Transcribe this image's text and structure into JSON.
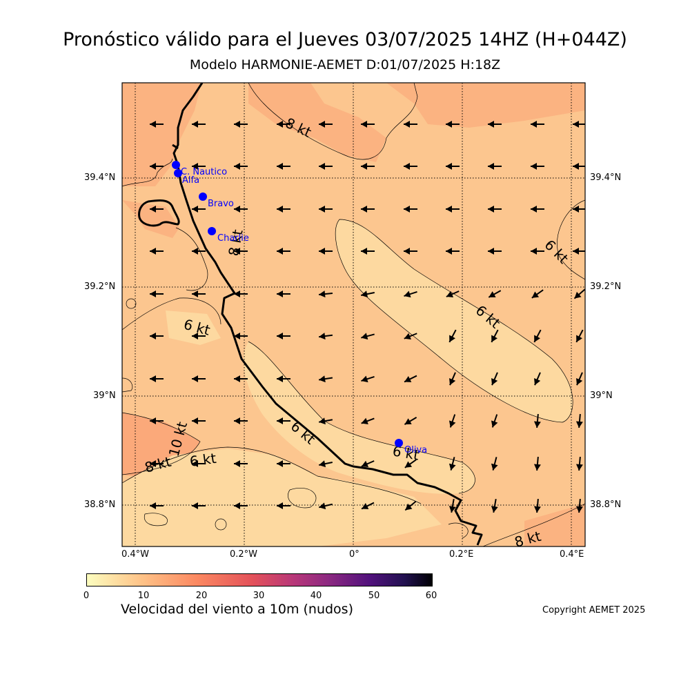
{
  "header": {
    "title": "Pronóstico válido para el Jueves 03/07/2025 14HZ (H+044Z)",
    "subtitle": "Modelo HARMONIE-AEMET D:01/07/2025 H:18Z"
  },
  "map": {
    "x_ticks": [
      "0.4°W",
      "0.2°W",
      "0°",
      "0.2°E",
      "0.4°E"
    ],
    "y_ticks_left": [
      "39.4°N",
      "39.2°N",
      "39°N",
      "38.8°N"
    ],
    "y_ticks_right": [
      "39.4°N",
      "39.2°N",
      "39°N",
      "38.8°N"
    ],
    "contour_labels": [
      "8 kt",
      "6 kt",
      "6 kt",
      "6 kt",
      "6 kt",
      "6 kt",
      "6 kt",
      "8 kt",
      "10 kt",
      "8 kt",
      "8 kt"
    ],
    "stations": [
      {
        "name": "C. Nautico"
      },
      {
        "name": "Alfa"
      },
      {
        "name": "Bravo"
      },
      {
        "name": "Charlie"
      },
      {
        "name": "Oliva"
      }
    ],
    "station_color": "#0000ff",
    "coastline_color": "#000000"
  },
  "colorbar": {
    "title": "Velocidad del viento a 10m (nudos)",
    "ticks": [
      "0",
      "10",
      "20",
      "30",
      "40",
      "50",
      "60"
    ],
    "colormap": "magma_r"
  },
  "footer": {
    "copyright": "Copyright AEMET 2025"
  }
}
